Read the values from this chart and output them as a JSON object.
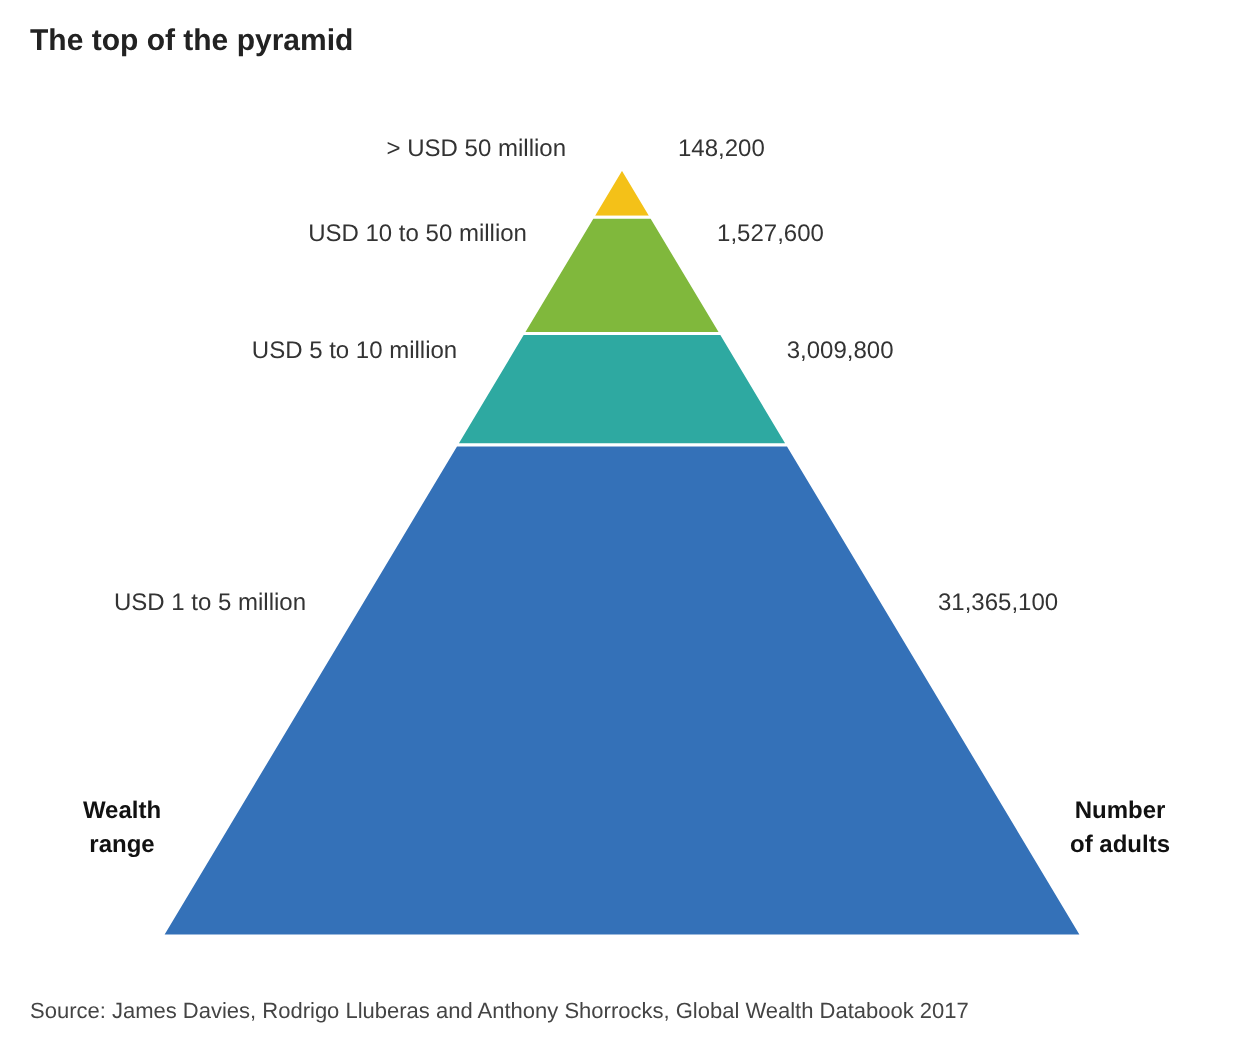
{
  "chart_data": {
    "type": "other",
    "title": "The top of the pyramid",
    "categories": [
      "> USD 50 million",
      "USD 10 to 50 million",
      "USD 5 to 10 million",
      "USD 1 to 5 million"
    ],
    "values": [
      148200,
      1527600,
      3009800,
      31365100
    ],
    "value_labels": [
      "148,200",
      "1,527,600",
      "3,009,800",
      "31,365,100"
    ],
    "colors": [
      "#f4c118",
      "#80b83c",
      "#2ea9a1",
      "#3471b8"
    ],
    "ylabel": "Wealth range",
    "y2label": "Number of adults",
    "annotations": [
      "Source: James Davies, Rodrigo Lluberas and Anthony Shorrocks, Global Wealth Databook 2017"
    ]
  }
}
